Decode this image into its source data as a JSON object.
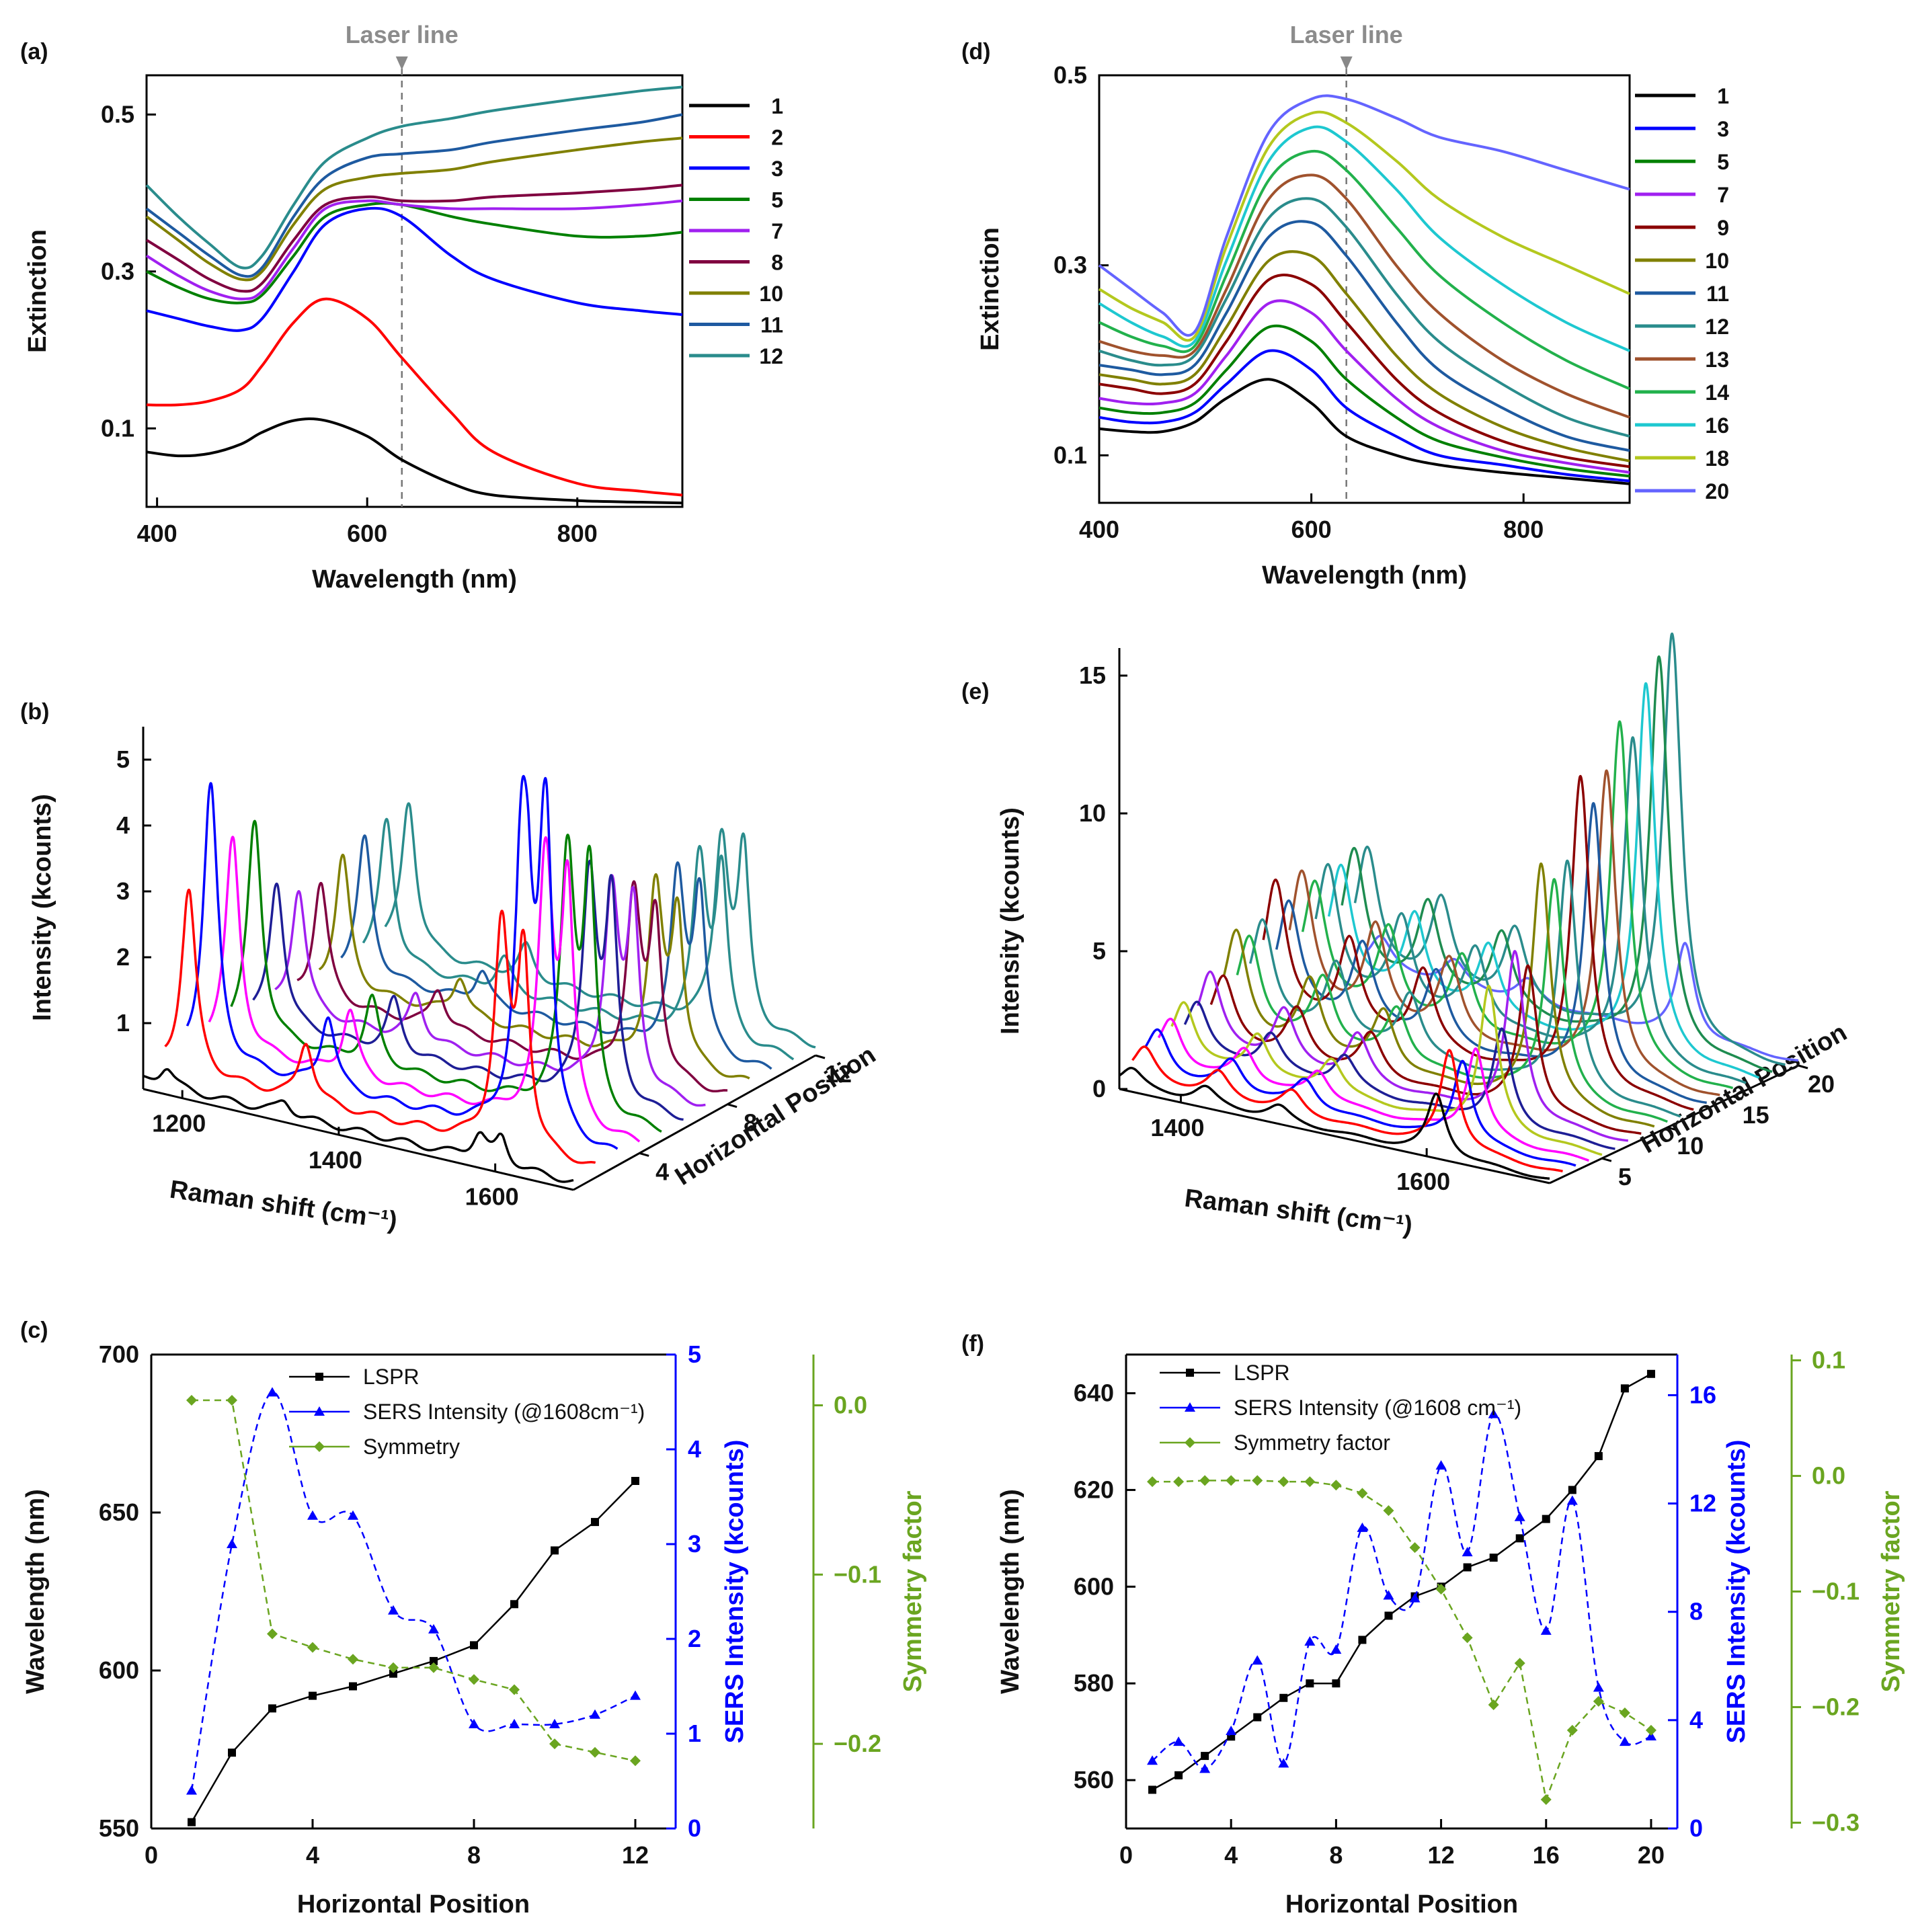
{
  "figure": {
    "panel_letters": [
      "(a)",
      "(b)",
      "(c)",
      "(d)",
      "(e)",
      "(f)"
    ]
  },
  "chart_data": [
    {
      "panel": "(a)",
      "type": "line",
      "xlabel": "Wavelength (nm)",
      "ylabel": "Extinction",
      "xlim": [
        390,
        900
      ],
      "ylim": [
        0.0,
        0.55
      ],
      "xticks": [
        "400",
        "600",
        "800"
      ],
      "yticks": [
        "0.1",
        "0.3",
        "0.5"
      ],
      "annotation": "Laser line",
      "laser_nm": 633,
      "legend": [
        "1",
        "2",
        "3",
        "5",
        "7",
        "8",
        "10",
        "11",
        "12"
      ],
      "x": [
        390,
        420,
        450,
        480,
        500,
        530,
        560,
        600,
        633,
        680,
        720,
        800,
        860,
        900
      ],
      "series": [
        {
          "name": "1",
          "color": "#000000",
          "values": [
            0.07,
            0.065,
            0.068,
            0.08,
            0.095,
            0.11,
            0.11,
            0.09,
            0.06,
            0.03,
            0.015,
            0.008,
            0.006,
            0.005
          ]
        },
        {
          "name": "2",
          "color": "#ff0000",
          "values": [
            0.13,
            0.13,
            0.135,
            0.15,
            0.18,
            0.235,
            0.265,
            0.24,
            0.19,
            0.12,
            0.07,
            0.03,
            0.02,
            0.015
          ]
        },
        {
          "name": "3",
          "color": "#0000ff",
          "values": [
            0.25,
            0.24,
            0.23,
            0.225,
            0.24,
            0.3,
            0.36,
            0.38,
            0.37,
            0.32,
            0.29,
            0.26,
            0.25,
            0.245
          ]
        },
        {
          "name": "5",
          "color": "#008000",
          "values": [
            0.3,
            0.28,
            0.265,
            0.26,
            0.27,
            0.32,
            0.37,
            0.385,
            0.385,
            0.37,
            0.36,
            0.345,
            0.345,
            0.35
          ]
        },
        {
          "name": "7",
          "color": "#a020f0",
          "values": [
            0.32,
            0.295,
            0.275,
            0.265,
            0.275,
            0.33,
            0.38,
            0.39,
            0.385,
            0.38,
            0.38,
            0.38,
            0.385,
            0.39
          ]
        },
        {
          "name": "8",
          "color": "#800040",
          "values": [
            0.34,
            0.315,
            0.29,
            0.275,
            0.285,
            0.34,
            0.385,
            0.395,
            0.39,
            0.39,
            0.395,
            0.4,
            0.405,
            0.41
          ]
        },
        {
          "name": "10",
          "color": "#808000",
          "values": [
            0.37,
            0.34,
            0.31,
            0.29,
            0.3,
            0.36,
            0.405,
            0.42,
            0.425,
            0.43,
            0.44,
            0.455,
            0.465,
            0.47
          ]
        },
        {
          "name": "11",
          "color": "#1e5aa0",
          "values": [
            0.38,
            0.35,
            0.32,
            0.295,
            0.305,
            0.37,
            0.42,
            0.445,
            0.45,
            0.455,
            0.465,
            0.48,
            0.49,
            0.5
          ]
        },
        {
          "name": "12",
          "color": "#2a8c8c",
          "values": [
            0.41,
            0.37,
            0.335,
            0.305,
            0.32,
            0.385,
            0.44,
            0.47,
            0.485,
            0.495,
            0.505,
            0.52,
            0.53,
            0.535
          ]
        }
      ]
    },
    {
      "panel": "(b)",
      "type": "line",
      "style": "waterfall-3d",
      "xlabel": "Raman shift (cm⁻¹)",
      "ylabel": "Intensity (kcounts)",
      "zlabel": "Horizontal Position",
      "xlim": [
        1150,
        1700
      ],
      "ylim": [
        0,
        5.5
      ],
      "xticks": [
        "1200",
        "1400",
        "1600"
      ],
      "yticks": [
        "1",
        "2",
        "3",
        "4",
        "5"
      ],
      "zticks": [
        "4",
        "8",
        "12"
      ],
      "series_positions": [
        1,
        2,
        3,
        4,
        5,
        6,
        7,
        8,
        9,
        10,
        11,
        12
      ],
      "peaks_cm": [
        1180,
        1330,
        1580,
        1608
      ],
      "peak_heights": [
        [
          0.3,
          0.2,
          0.4,
          0.4
        ],
        [
          2.8,
          0.9,
          3.3,
          3.0
        ],
        [
          4.2,
          1.1,
          5.4,
          5.2
        ],
        [
          3.2,
          1.0,
          4.0,
          3.6
        ],
        [
          3.3,
          1.0,
          3.9,
          3.6
        ],
        [
          2.2,
          0.8,
          3.4,
          3.0
        ],
        [
          1.9,
          0.7,
          3.0,
          2.7
        ],
        [
          1.8,
          0.6,
          2.7,
          2.4
        ],
        [
          2.0,
          0.6,
          2.6,
          2.3
        ],
        [
          2.1,
          0.5,
          2.6,
          2.4
        ],
        [
          2.2,
          0.5,
          2.7,
          2.5
        ],
        [
          2.3,
          0.5,
          2.8,
          2.6
        ]
      ]
    },
    {
      "panel": "(c)",
      "type": "line",
      "xlabel": "Horizontal Position",
      "ylabel": "Wavelength (nm)",
      "y2label": "SERS Intensity (kcounts)",
      "y3label": "Symmetry factor",
      "xlim": [
        0,
        13
      ],
      "ylim": [
        550,
        700
      ],
      "y2lim": [
        0,
        5
      ],
      "y3lim": [
        -0.25,
        0.03
      ],
      "xticks": [
        "0",
        "4",
        "8",
        "12"
      ],
      "yticks": [
        "550",
        "600",
        "650",
        "700"
      ],
      "y2ticks": [
        "0",
        "1",
        "2",
        "3",
        "4",
        "5"
      ],
      "y3ticks": [
        "0.0",
        "−0.1",
        "−0.2"
      ],
      "legend": [
        "LSPR",
        "SERS Intensity (@1608cm⁻¹)",
        "Symmetry"
      ],
      "x": [
        1,
        2,
        3,
        4,
        5,
        6,
        7,
        8,
        9,
        10,
        11,
        12
      ],
      "series": [
        {
          "name": "LSPR",
          "axis": "y",
          "values": [
            552,
            574,
            588,
            592,
            595,
            599,
            603,
            608,
            621,
            638,
            647,
            660
          ]
        },
        {
          "name": "SERS Intensity (@1608cm⁻¹)",
          "axis": "y2",
          "values": [
            0.4,
            3.0,
            4.6,
            3.3,
            3.3,
            2.3,
            2.1,
            1.1,
            1.1,
            1.1,
            1.2,
            1.4
          ]
        },
        {
          "name": "Symmetry",
          "axis": "y3",
          "values": [
            0.003,
            0.003,
            -0.135,
            -0.143,
            -0.15,
            -0.155,
            -0.155,
            -0.162,
            -0.168,
            -0.2,
            -0.205,
            -0.21
          ]
        }
      ]
    },
    {
      "panel": "(d)",
      "type": "line",
      "xlabel": "Wavelength (nm)",
      "ylabel": "Extinction",
      "xlim": [
        400,
        900
      ],
      "ylim": [
        0.05,
        0.5
      ],
      "xticks": [
        "400",
        "600",
        "800"
      ],
      "yticks": [
        "0.1",
        "0.3",
        "0.5"
      ],
      "annotation": "Laser line",
      "laser_nm": 633,
      "legend": [
        "1",
        "3",
        "5",
        "7",
        "9",
        "10",
        "11",
        "12",
        "13",
        "14",
        "16",
        "18",
        "20"
      ],
      "x": [
        400,
        430,
        460,
        490,
        520,
        560,
        600,
        633,
        680,
        720,
        780,
        840,
        900
      ],
      "series": [
        {
          "name": "1",
          "color": "#000000",
          "values": [
            0.128,
            0.125,
            0.125,
            0.135,
            0.16,
            0.18,
            0.155,
            0.12,
            0.1,
            0.09,
            0.082,
            0.076,
            0.07
          ]
        },
        {
          "name": "3",
          "color": "#0000ff",
          "values": [
            0.14,
            0.135,
            0.135,
            0.145,
            0.175,
            0.21,
            0.19,
            0.15,
            0.12,
            0.1,
            0.09,
            0.08,
            0.073
          ]
        },
        {
          "name": "5",
          "color": "#008000",
          "values": [
            0.15,
            0.145,
            0.145,
            0.155,
            0.19,
            0.235,
            0.22,
            0.18,
            0.14,
            0.115,
            0.098,
            0.086,
            0.078
          ]
        },
        {
          "name": "7",
          "color": "#a020f0",
          "values": [
            0.16,
            0.155,
            0.155,
            0.165,
            0.205,
            0.26,
            0.25,
            0.21,
            0.16,
            0.13,
            0.105,
            0.092,
            0.082
          ]
        },
        {
          "name": "9",
          "color": "#8b0000",
          "values": [
            0.175,
            0.17,
            0.165,
            0.175,
            0.22,
            0.285,
            0.28,
            0.24,
            0.18,
            0.145,
            0.115,
            0.098,
            0.088
          ]
        },
        {
          "name": "10",
          "color": "#808000",
          "values": [
            0.185,
            0.18,
            0.175,
            0.185,
            0.235,
            0.305,
            0.31,
            0.27,
            0.205,
            0.165,
            0.13,
            0.108,
            0.094
          ]
        },
        {
          "name": "11",
          "color": "#1e5aa0",
          "values": [
            0.195,
            0.19,
            0.185,
            0.195,
            0.25,
            0.33,
            0.345,
            0.31,
            0.24,
            0.19,
            0.15,
            0.12,
            0.105
          ]
        },
        {
          "name": "12",
          "color": "#2a8c8c",
          "values": [
            0.21,
            0.2,
            0.195,
            0.205,
            0.265,
            0.35,
            0.37,
            0.34,
            0.27,
            0.22,
            0.175,
            0.14,
            0.12
          ]
        },
        {
          "name": "13",
          "color": "#a0522d",
          "values": [
            0.22,
            0.21,
            0.205,
            0.21,
            0.275,
            0.37,
            0.395,
            0.37,
            0.3,
            0.25,
            0.2,
            0.165,
            0.14
          ]
        },
        {
          "name": "14",
          "color": "#22b14c",
          "values": [
            0.24,
            0.225,
            0.215,
            0.215,
            0.29,
            0.39,
            0.42,
            0.4,
            0.34,
            0.29,
            0.24,
            0.2,
            0.17
          ]
        },
        {
          "name": "16",
          "color": "#1ec8d0",
          "values": [
            0.26,
            0.24,
            0.225,
            0.22,
            0.305,
            0.41,
            0.445,
            0.43,
            0.38,
            0.33,
            0.28,
            0.24,
            0.21
          ]
        },
        {
          "name": "18",
          "color": "#b4c81e",
          "values": [
            0.275,
            0.255,
            0.24,
            0.225,
            0.32,
            0.425,
            0.46,
            0.45,
            0.41,
            0.37,
            0.33,
            0.3,
            0.27
          ]
        },
        {
          "name": "20",
          "color": "#6464ff",
          "values": [
            0.3,
            0.275,
            0.25,
            0.23,
            0.33,
            0.44,
            0.475,
            0.475,
            0.455,
            0.435,
            0.42,
            0.4,
            0.38
          ]
        }
      ]
    },
    {
      "panel": "(e)",
      "type": "line",
      "style": "waterfall-3d",
      "xlabel": "Raman shift (cm⁻¹)",
      "ylabel": "Intensity (kcounts)",
      "zlabel": "Horizontal Position",
      "xlim": [
        1350,
        1700
      ],
      "ylim": [
        0,
        16
      ],
      "xticks": [
        "1400",
        "1600"
      ],
      "yticks": [
        "0",
        "5",
        "10",
        "15"
      ],
      "zticks": [
        "5",
        "10",
        "15",
        "20"
      ],
      "series_positions": [
        1,
        2,
        3,
        4,
        5,
        6,
        7,
        8,
        9,
        10,
        11,
        12,
        13,
        14,
        15,
        16,
        17,
        18,
        19,
        20
      ],
      "peaks_cm": [
        1360,
        1420,
        1480,
        1608
      ],
      "peak_heights": [
        [
          0.7,
          0.6,
          0.5,
          2.2
        ],
        [
          1.2,
          0.9,
          0.8,
          3.6
        ],
        [
          1.6,
          1.1,
          1.0,
          3.0
        ],
        [
          1.8,
          1.3,
          1.1,
          3.2
        ],
        [
          2.2,
          1.6,
          1.3,
          5.2
        ],
        [
          2.0,
          1.4,
          1.2,
          3.4
        ],
        [
          2.8,
          2.0,
          1.7,
          6.0
        ],
        [
          2.4,
          1.8,
          1.5,
          5.3
        ],
        [
          3.8,
          2.6,
          2.1,
          8.8
        ],
        [
          3.4,
          2.5,
          2.0,
          8.0
        ],
        [
          3.8,
          2.8,
          2.3,
          8.4
        ],
        [
          5.0,
          3.4,
          2.9,
          11.2
        ],
        [
          4.0,
          3.0,
          2.6,
          10.0
        ],
        [
          4.8,
          3.4,
          2.8,
          11.0
        ],
        [
          4.2,
          3.1,
          2.7,
          12.6
        ],
        [
          4.6,
          3.3,
          2.8,
          11.8
        ],
        [
          4.4,
          3.2,
          2.7,
          13.5
        ],
        [
          4.8,
          3.4,
          2.9,
          14.2
        ],
        [
          4.6,
          3.3,
          2.8,
          14.8
        ],
        [
          1.2,
          0.9,
          0.8,
          3.4
        ]
      ]
    },
    {
      "panel": "(f)",
      "type": "line",
      "xlabel": "Horizontal Position",
      "ylabel": "Wavelength (nm)",
      "y2label": "SERS Intensity (kcounts)",
      "y3label": "Symmetry factor",
      "xlim": [
        0,
        21
      ],
      "ylim": [
        550,
        648
      ],
      "y2lim": [
        0,
        17.5
      ],
      "y3lim": [
        -0.305,
        0.105
      ],
      "xticks": [
        "0",
        "4",
        "8",
        "12",
        "16",
        "20"
      ],
      "yticks": [
        "560",
        "580",
        "600",
        "620",
        "640"
      ],
      "y2ticks": [
        "0",
        "4",
        "8",
        "12",
        "16"
      ],
      "y3ticks": [
        "0.1",
        "0.0",
        "−0.1",
        "−0.2",
        "−0.3"
      ],
      "legend": [
        "LSPR",
        "SERS Intensity (@1608 cm⁻¹)",
        "Symmetry factor"
      ],
      "x": [
        1,
        2,
        3,
        4,
        5,
        6,
        7,
        8,
        9,
        10,
        11,
        12,
        13,
        14,
        15,
        16,
        17,
        18,
        19,
        20
      ],
      "series": [
        {
          "name": "LSPR",
          "axis": "y",
          "values": [
            558,
            561,
            565,
            569,
            573,
            577,
            580,
            580,
            589,
            594,
            598,
            600,
            604,
            606,
            610,
            614,
            620,
            627,
            641,
            644
          ]
        },
        {
          "name": "SERS Intensity (@1608 cm⁻¹)",
          "axis": "y2",
          "values": [
            2.5,
            3.2,
            2.2,
            3.6,
            6.2,
            2.4,
            6.9,
            6.6,
            11.1,
            8.6,
            8.5,
            13.4,
            10.2,
            15.3,
            11.5,
            7.3,
            12.1,
            5.2,
            3.2,
            3.4
          ]
        },
        {
          "name": "Symmetry factor",
          "axis": "y3",
          "values": [
            -0.005,
            -0.005,
            -0.004,
            -0.004,
            -0.004,
            -0.005,
            -0.005,
            -0.008,
            -0.015,
            -0.03,
            -0.062,
            -0.098,
            -0.14,
            -0.198,
            -0.162,
            -0.28,
            -0.22,
            -0.195,
            -0.205,
            -0.22
          ]
        }
      ]
    }
  ]
}
